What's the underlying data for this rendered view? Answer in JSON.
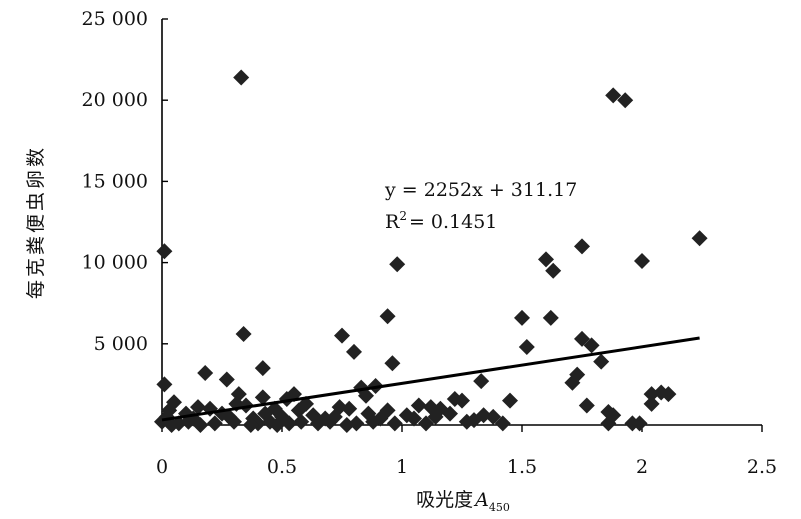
{
  "chart_data": {
    "type": "scatter",
    "title": "",
    "xlabel": "吸光度",
    "xlabel_var": "A",
    "xlabel_sub": "450",
    "ylabel": "每克粪便虫卵数",
    "xlim": [
      0,
      2.5
    ],
    "ylim": [
      0,
      25000
    ],
    "x_ticks": [
      "0",
      "0.5",
      "1",
      "1.5",
      "2",
      "2.5"
    ],
    "x_tick_values": [
      0,
      0.5,
      1,
      1.5,
      2,
      2.5
    ],
    "y_ticks": [
      "5 000",
      "10 000",
      "15 000",
      "20 000",
      "25 000"
    ],
    "y_tick_values": [
      5000,
      10000,
      15000,
      20000,
      25000
    ],
    "grid": false,
    "marker": "diamond",
    "marker_color": "#222222",
    "trendline": {
      "slope": 2252,
      "intercept": 311.17,
      "x_range": [
        0,
        2.24
      ],
      "equation_label": "y = 2252x + 311.17",
      "r2_prefix": "R",
      "r2_sup": "2",
      "r2_value": "= 0.1451"
    },
    "points": [
      [
        0.01,
        10700
      ],
      [
        0.33,
        21400
      ],
      [
        1.88,
        20300
      ],
      [
        1.93,
        20000
      ],
      [
        2.24,
        11500
      ],
      [
        1.75,
        11000
      ],
      [
        1.6,
        10200
      ],
      [
        1.63,
        9500
      ],
      [
        2.0,
        10100
      ],
      [
        0.98,
        9900
      ],
      [
        0.94,
        6700
      ],
      [
        1.5,
        6600
      ],
      [
        1.62,
        6600
      ],
      [
        0.34,
        5600
      ],
      [
        0.75,
        5500
      ],
      [
        1.75,
        5300
      ],
      [
        1.79,
        4900
      ],
      [
        1.52,
        4800
      ],
      [
        0.8,
        4500
      ],
      [
        0.96,
        3800
      ],
      [
        1.83,
        3900
      ],
      [
        0.42,
        3500
      ],
      [
        0.18,
        3200
      ],
      [
        1.73,
        3100
      ],
      [
        0.27,
        2800
      ],
      [
        1.33,
        2700
      ],
      [
        1.71,
        2600
      ],
      [
        0.01,
        2500
      ],
      [
        0.83,
        2300
      ],
      [
        0.89,
        2400
      ],
      [
        0.32,
        1900
      ],
      [
        0.55,
        1900
      ],
      [
        2.08,
        2000
      ],
      [
        2.04,
        1900
      ],
      [
        2.11,
        1900
      ],
      [
        0.85,
        1800
      ],
      [
        0.42,
        1700
      ],
      [
        0.52,
        1600
      ],
      [
        1.22,
        1600
      ],
      [
        1.25,
        1500
      ],
      [
        1.45,
        1500
      ],
      [
        2.04,
        1300
      ],
      [
        0.05,
        1400
      ],
      [
        0.31,
        1300
      ],
      [
        0.35,
        1200
      ],
      [
        0.6,
        1300
      ],
      [
        0.74,
        1100
      ],
      [
        1.07,
        1200
      ],
      [
        1.12,
        1100
      ],
      [
        1.77,
        1200
      ],
      [
        0.15,
        1100
      ],
      [
        0.2,
        1000
      ],
      [
        0.47,
        1000
      ],
      [
        0.57,
        900
      ],
      [
        0.78,
        1000
      ],
      [
        0.94,
        900
      ],
      [
        1.16,
        1000
      ],
      [
        1.86,
        800
      ],
      [
        0.03,
        900
      ],
      [
        0.1,
        700
      ],
      [
        0.25,
        700
      ],
      [
        0.43,
        700
      ],
      [
        0.63,
        600
      ],
      [
        0.86,
        700
      ],
      [
        1.02,
        600
      ],
      [
        1.2,
        700
      ],
      [
        1.34,
        600
      ],
      [
        1.38,
        500
      ],
      [
        1.88,
        600
      ],
      [
        0.02,
        500
      ],
      [
        0.13,
        400
      ],
      [
        0.28,
        500
      ],
      [
        0.38,
        400
      ],
      [
        0.5,
        500
      ],
      [
        0.68,
        400
      ],
      [
        0.72,
        500
      ],
      [
        0.91,
        400
      ],
      [
        1.05,
        400
      ],
      [
        1.14,
        500
      ],
      [
        1.3,
        300
      ],
      [
        0.0,
        200
      ],
      [
        0.07,
        100
      ],
      [
        0.11,
        200
      ],
      [
        0.22,
        100
      ],
      [
        0.3,
        200
      ],
      [
        0.4,
        100
      ],
      [
        0.45,
        200
      ],
      [
        0.53,
        100
      ],
      [
        0.58,
        200
      ],
      [
        0.65,
        100
      ],
      [
        0.7,
        200
      ],
      [
        0.81,
        100
      ],
      [
        0.88,
        200
      ],
      [
        0.97,
        100
      ],
      [
        1.1,
        100
      ],
      [
        1.27,
        200
      ],
      [
        1.42,
        100
      ],
      [
        1.86,
        100
      ],
      [
        1.96,
        100
      ],
      [
        1.99,
        100
      ],
      [
        0.04,
        0
      ],
      [
        0.16,
        0
      ],
      [
        0.37,
        0
      ],
      [
        0.48,
        0
      ],
      [
        0.77,
        0
      ]
    ]
  }
}
